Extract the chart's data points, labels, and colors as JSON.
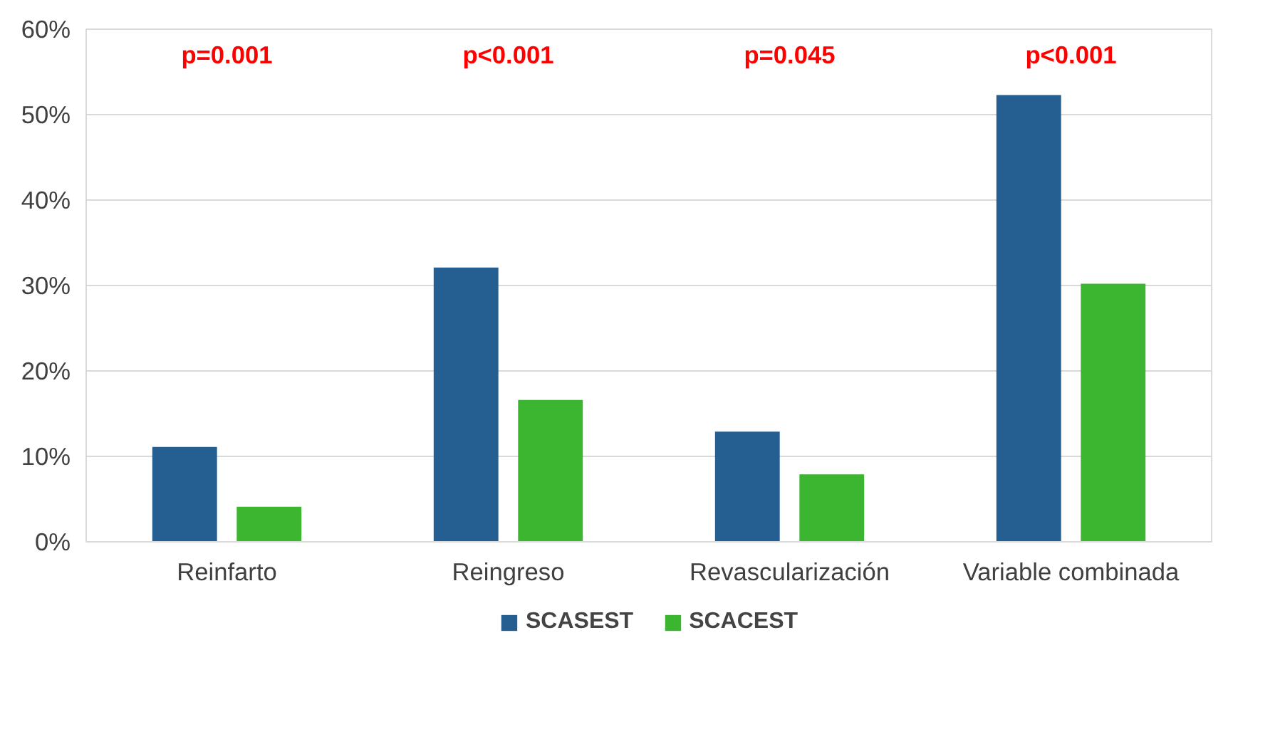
{
  "chart_data": {
    "type": "bar",
    "categories": [
      "Reinfarto",
      "Reingreso",
      "Revascularización",
      "Variable combinada"
    ],
    "series": [
      {
        "name": "SCASEST",
        "color": "#255e91",
        "values": [
          11.1,
          32.1,
          12.9,
          52.3
        ]
      },
      {
        "name": "SCACEST",
        "color": "#3cb531",
        "values": [
          4.1,
          16.6,
          7.9,
          30.2
        ]
      }
    ],
    "ylim": [
      0,
      60
    ],
    "yticks": [
      {
        "value": 0,
        "label": "0%"
      },
      {
        "value": 10,
        "label": "10%"
      },
      {
        "value": 20,
        "label": "20%"
      },
      {
        "value": 30,
        "label": "30%"
      },
      {
        "value": 40,
        "label": "40%"
      },
      {
        "value": 50,
        "label": "50%"
      },
      {
        "value": 60,
        "label": "60%"
      }
    ],
    "annotations": [
      "p=0.001",
      "p<0.001",
      "p=0.045",
      "p<0.001"
    ],
    "grid": "y",
    "legend": "bottom"
  }
}
